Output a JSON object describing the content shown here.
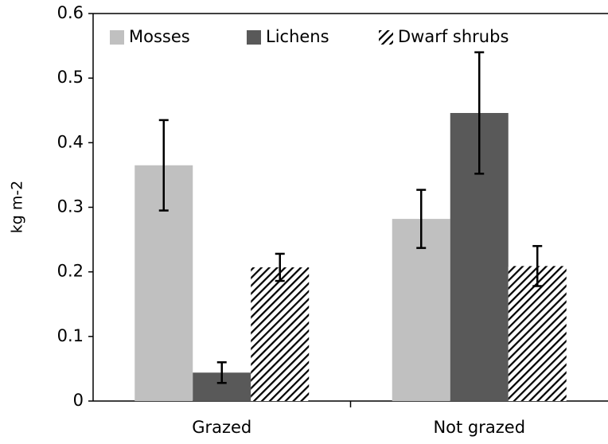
{
  "chart_data": {
    "type": "bar",
    "y_label": "kg m-2",
    "categories": [
      "Grazed",
      "Not grazed"
    ],
    "series": [
      {
        "name": "Mosses",
        "color": "#c0c0c0",
        "values": [
          0.365,
          0.282
        ],
        "errors": [
          0.07,
          0.045
        ]
      },
      {
        "name": "Lichens",
        "color": "#595959",
        "values": [
          0.044,
          0.446
        ],
        "errors": [
          0.016,
          0.094
        ]
      },
      {
        "name": "Dwarf shrubs",
        "color": "#000000",
        "hatch": true,
        "values": [
          0.207,
          0.209
        ],
        "errors": [
          0.021,
          0.031
        ]
      }
    ],
    "ylim": [
      0,
      0.6
    ],
    "yticks": [
      0,
      0.1,
      0.2,
      0.3,
      0.4,
      0.5,
      0.6
    ],
    "legend": "top"
  }
}
